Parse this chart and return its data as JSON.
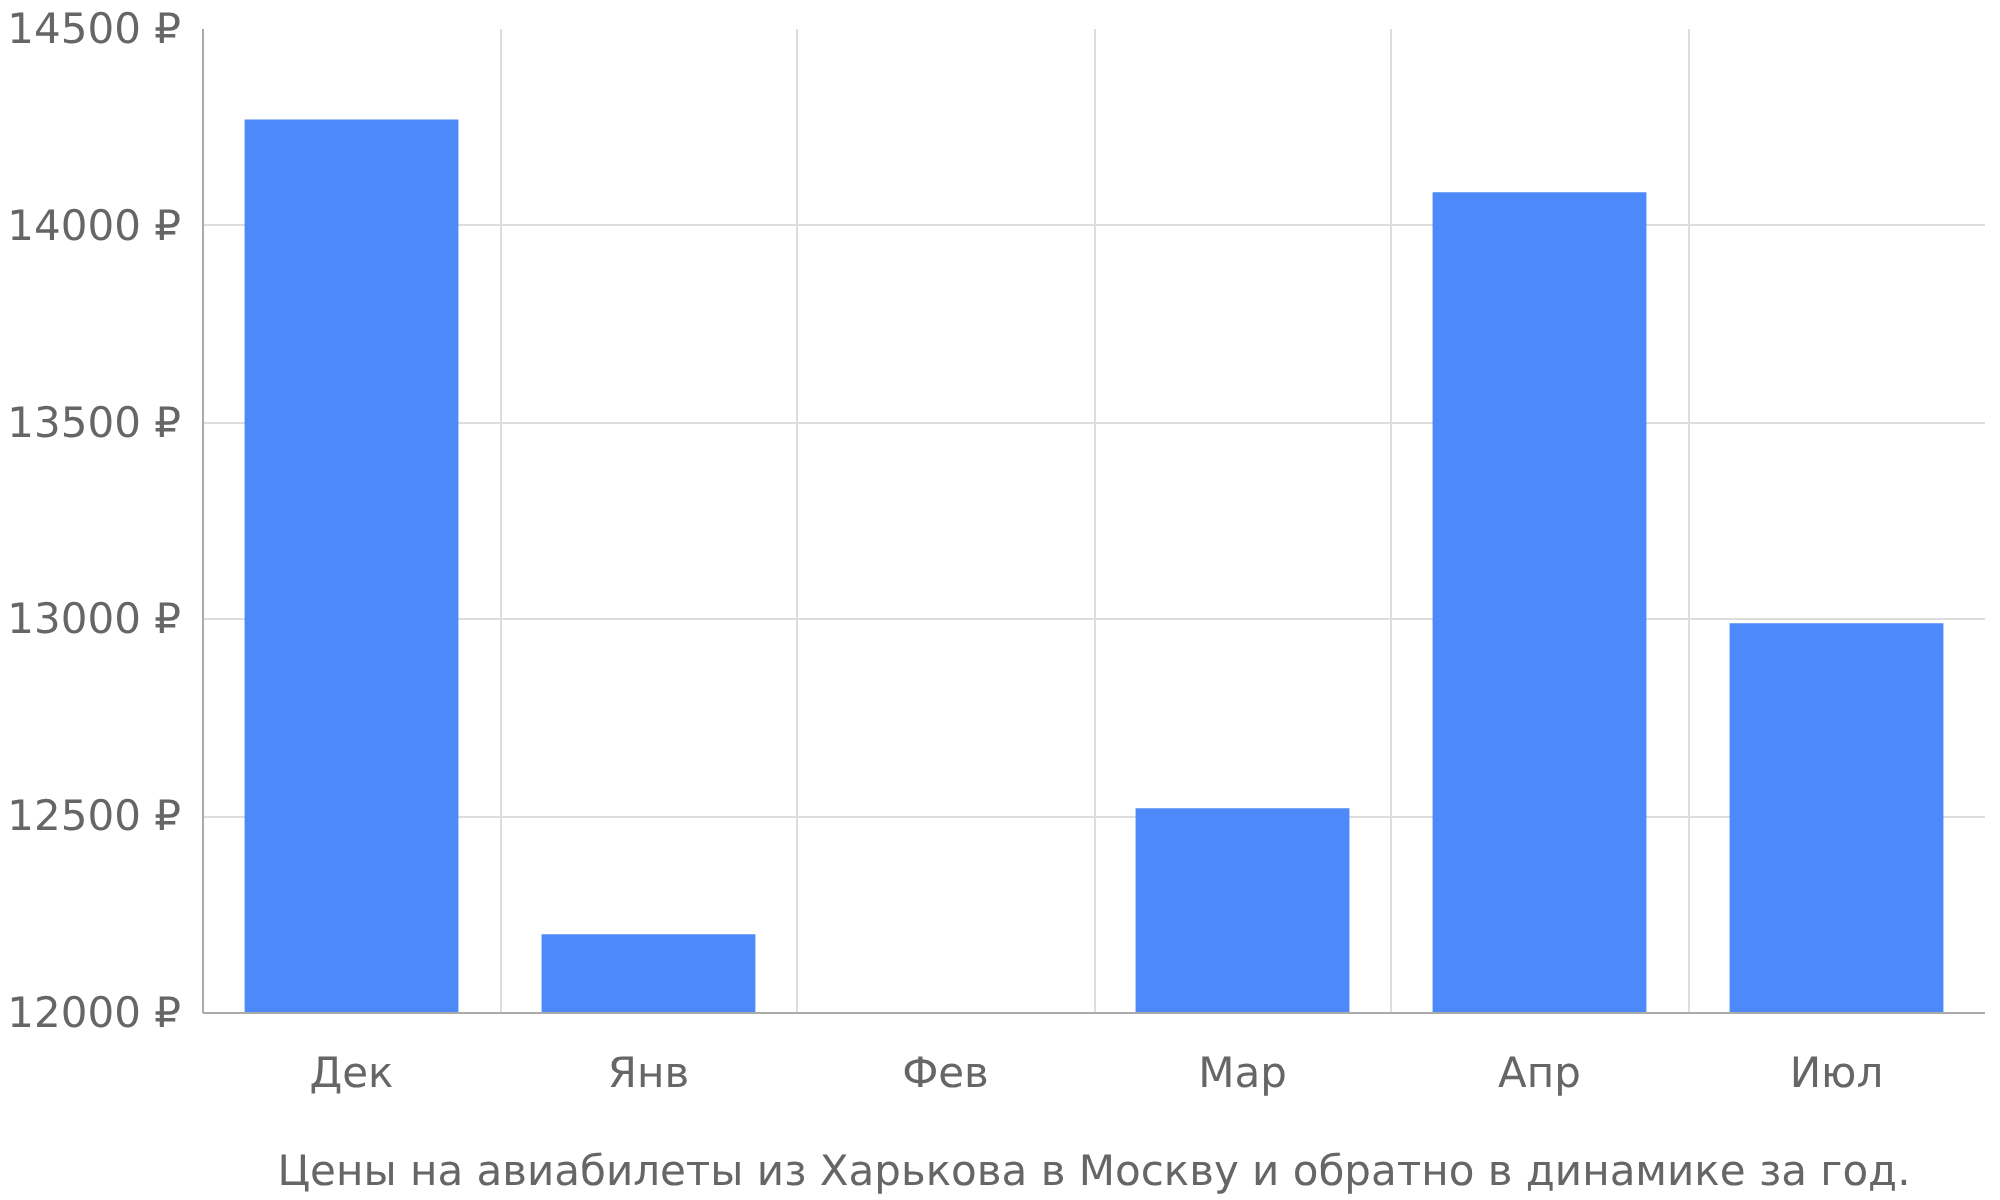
{
  "chart_data": {
    "type": "bar",
    "xlabel": "Цены на авиабилеты из Харькова в Москву и обратно в динамике за год.",
    "categories": [
      "Дек",
      "Янв",
      "Фев",
      "Мар",
      "Апр",
      "Июл"
    ],
    "values": [
      14270,
      12200,
      null,
      12520,
      14085,
      12990
    ],
    "color": "#4d89f9",
    "ylim": [
      12000,
      14500
    ],
    "yticks": [
      {
        "value": 12000,
        "label": "12000 ₽"
      },
      {
        "value": 12500,
        "label": "12500 ₽"
      },
      {
        "value": 13000,
        "label": "13000 ₽"
      },
      {
        "value": 13500,
        "label": "13500 ₽"
      },
      {
        "value": 14000,
        "label": "14000 ₽"
      },
      {
        "value": 14500,
        "label": "14500 ₽"
      }
    ],
    "grid": true
  }
}
